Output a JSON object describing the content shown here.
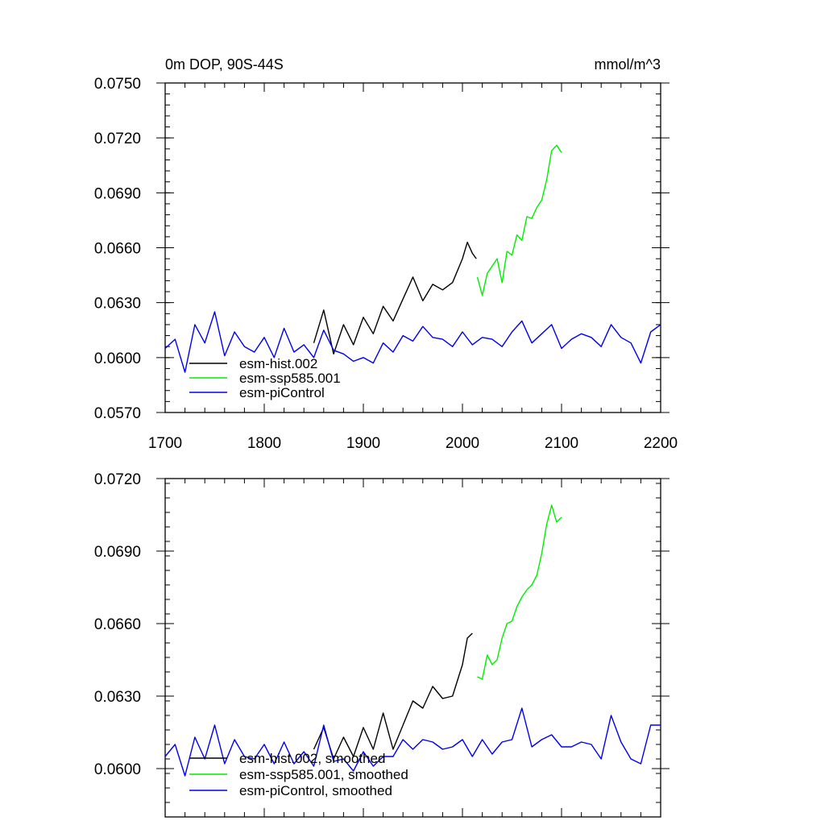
{
  "header": {
    "title_left": "0m DOP, 90S-44S",
    "title_right": "mmol/m^3"
  },
  "x_ticks": [
    "1700",
    "1800",
    "1900",
    "2000",
    "2100",
    "2200"
  ],
  "colors": {
    "hist": "#000000",
    "ssp": "#00ee00",
    "picontrol": "#0000ee"
  },
  "chart_data": [
    {
      "type": "line",
      "title": "0m DOP, 90S-44S",
      "units": "mmol/m^3",
      "xlim": [
        1700,
        2200
      ],
      "ylim": [
        0.057,
        0.075
      ],
      "y_tick_labels": [
        "0.0570",
        "0.0600",
        "0.0630",
        "0.0660",
        "0.0690",
        "0.0720",
        "0.0750"
      ],
      "legend_position": "bottom-left",
      "series": [
        {
          "name": "esm-hist.002",
          "color": "#000000",
          "x": [
            1850,
            1860,
            1870,
            1880,
            1890,
            1900,
            1910,
            1920,
            1930,
            1940,
            1950,
            1960,
            1970,
            1980,
            1990,
            2000,
            2005,
            2010,
            2014
          ],
          "y": [
            0.0608,
            0.0626,
            0.0602,
            0.0618,
            0.0607,
            0.0622,
            0.0613,
            0.0628,
            0.062,
            0.0632,
            0.0644,
            0.0631,
            0.064,
            0.0637,
            0.0641,
            0.0654,
            0.0663,
            0.0657,
            0.0654
          ]
        },
        {
          "name": "esm-ssp585.001",
          "color": "#00ee00",
          "x": [
            2015,
            2020,
            2025,
            2030,
            2035,
            2040,
            2045,
            2050,
            2055,
            2060,
            2065,
            2070,
            2075,
            2080,
            2085,
            2090,
            2095,
            2100
          ],
          "y": [
            0.0644,
            0.0634,
            0.0646,
            0.065,
            0.0654,
            0.0641,
            0.0658,
            0.0656,
            0.0667,
            0.0664,
            0.0677,
            0.0676,
            0.0682,
            0.0686,
            0.0697,
            0.0713,
            0.0716,
            0.0712
          ]
        },
        {
          "name": "esm-piControl",
          "color": "#0000ee",
          "x": [
            1700,
            1710,
            1720,
            1730,
            1740,
            1750,
            1760,
            1770,
            1780,
            1790,
            1800,
            1810,
            1820,
            1830,
            1840,
            1850,
            1860,
            1870,
            1880,
            1890,
            1900,
            1910,
            1920,
            1930,
            1940,
            1950,
            1960,
            1970,
            1980,
            1990,
            2000,
            2010,
            2020,
            2030,
            2040,
            2050,
            2060,
            2070,
            2080,
            2090,
            2100,
            2110,
            2120,
            2130,
            2140,
            2150,
            2160,
            2170,
            2180,
            2190,
            2200
          ],
          "y": [
            0.0605,
            0.061,
            0.0592,
            0.0618,
            0.0608,
            0.0625,
            0.0601,
            0.0614,
            0.0606,
            0.0603,
            0.0611,
            0.06,
            0.0616,
            0.0603,
            0.0607,
            0.06,
            0.0615,
            0.0604,
            0.0602,
            0.0598,
            0.06,
            0.0597,
            0.0608,
            0.0603,
            0.0612,
            0.0609,
            0.0617,
            0.0611,
            0.061,
            0.0606,
            0.0614,
            0.0607,
            0.0611,
            0.061,
            0.0606,
            0.0614,
            0.062,
            0.0608,
            0.0613,
            0.0618,
            0.0605,
            0.061,
            0.0613,
            0.0611,
            0.0606,
            0.0618,
            0.0611,
            0.0608,
            0.0597,
            0.0614,
            0.0618
          ]
        }
      ]
    },
    {
      "type": "line",
      "xlim": [
        1700,
        2200
      ],
      "ylim": [
        0.058,
        0.072
      ],
      "y_tick_labels": [
        "0.0600",
        "0.0630",
        "0.0660",
        "0.0690",
        "0.0720"
      ],
      "legend_position": "bottom-left",
      "series": [
        {
          "name": "esm-hist.002, smoothed",
          "color": "#000000",
          "x": [
            1850,
            1860,
            1870,
            1880,
            1890,
            1900,
            1910,
            1920,
            1930,
            1940,
            1950,
            1960,
            1970,
            1980,
            1990,
            2000,
            2005,
            2010
          ],
          "y": [
            0.0608,
            0.0617,
            0.0604,
            0.0613,
            0.0605,
            0.0617,
            0.0608,
            0.0623,
            0.0608,
            0.0618,
            0.0628,
            0.0625,
            0.0634,
            0.0629,
            0.063,
            0.0643,
            0.0654,
            0.0656
          ]
        },
        {
          "name": "esm-ssp585.001, smoothed",
          "color": "#00ee00",
          "x": [
            2015,
            2020,
            2025,
            2030,
            2035,
            2040,
            2045,
            2050,
            2055,
            2060,
            2065,
            2070,
            2075,
            2080,
            2085,
            2090,
            2095,
            2100
          ],
          "y": [
            0.0638,
            0.0637,
            0.0647,
            0.0643,
            0.0645,
            0.0654,
            0.066,
            0.0661,
            0.0667,
            0.0671,
            0.0674,
            0.0676,
            0.068,
            0.0689,
            0.0701,
            0.0709,
            0.0702,
            0.0704
          ]
        },
        {
          "name": "esm-piControl, smoothed",
          "color": "#0000ee",
          "x": [
            1700,
            1710,
            1720,
            1730,
            1740,
            1750,
            1760,
            1770,
            1780,
            1790,
            1800,
            1810,
            1820,
            1830,
            1840,
            1850,
            1860,
            1870,
            1880,
            1890,
            1900,
            1910,
            1920,
            1930,
            1940,
            1950,
            1960,
            1970,
            1980,
            1990,
            2000,
            2010,
            2020,
            2030,
            2040,
            2050,
            2060,
            2070,
            2080,
            2090,
            2100,
            2110,
            2120,
            2130,
            2140,
            2150,
            2160,
            2170,
            2180,
            2190,
            2200
          ],
          "y": [
            0.0605,
            0.061,
            0.0597,
            0.0613,
            0.0604,
            0.0618,
            0.0602,
            0.0612,
            0.0605,
            0.0604,
            0.061,
            0.0602,
            0.0611,
            0.0602,
            0.0607,
            0.0601,
            0.0618,
            0.0603,
            0.0604,
            0.0599,
            0.0607,
            0.0601,
            0.0605,
            0.0605,
            0.0612,
            0.0608,
            0.0612,
            0.0611,
            0.0608,
            0.0609,
            0.0612,
            0.0605,
            0.0612,
            0.0606,
            0.0611,
            0.0612,
            0.0625,
            0.0609,
            0.0612,
            0.0614,
            0.0609,
            0.0609,
            0.0611,
            0.061,
            0.0604,
            0.0622,
            0.0611,
            0.0604,
            0.0602,
            0.0618,
            0.0618
          ]
        }
      ]
    }
  ]
}
